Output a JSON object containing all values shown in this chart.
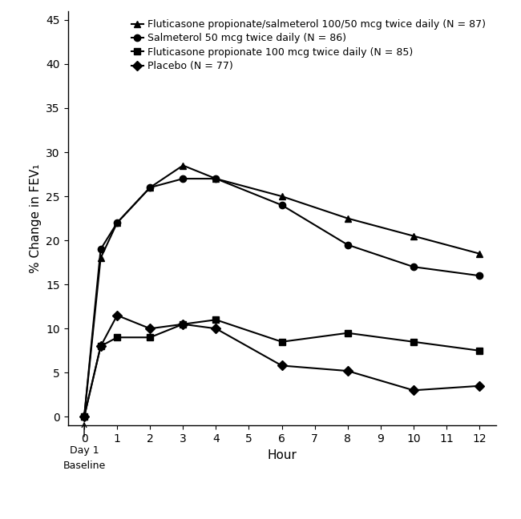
{
  "series": [
    {
      "label": "Fluticasone propionate/salmeterol 100/50 mcg twice daily (N = 87)",
      "marker": "^",
      "x": [
        0,
        0.5,
        1,
        2,
        3,
        4,
        6,
        8,
        10,
        12
      ],
      "y": [
        0,
        18.0,
        22.0,
        26.0,
        28.5,
        27.0,
        25.0,
        22.5,
        20.5,
        18.5
      ]
    },
    {
      "label": "Salmeterol 50 mcg twice daily (N = 86)",
      "marker": "o",
      "x": [
        0,
        0.5,
        1,
        2,
        3,
        4,
        6,
        8,
        10,
        12
      ],
      "y": [
        0,
        19.0,
        22.0,
        26.0,
        27.0,
        27.0,
        24.0,
        19.5,
        17.0,
        16.0
      ]
    },
    {
      "label": "Fluticasone propionate 100 mcg twice daily (N = 85)",
      "marker": "s",
      "x": [
        0,
        0.5,
        1,
        2,
        3,
        4,
        6,
        8,
        10,
        12
      ],
      "y": [
        0,
        8.0,
        9.0,
        9.0,
        10.5,
        11.0,
        8.5,
        9.5,
        8.5,
        7.5
      ]
    },
    {
      "label": "Placebo (N = 77)",
      "marker": "D",
      "x": [
        0,
        0.5,
        1,
        2,
        3,
        4,
        6,
        8,
        10,
        12
      ],
      "y": [
        0,
        8.0,
        11.5,
        10.0,
        10.5,
        10.0,
        5.8,
        5.2,
        3.0,
        3.5
      ]
    }
  ],
  "xlabel": "Hour",
  "ylabel": "% Change in FEV₁",
  "xlim": [
    -0.5,
    12.5
  ],
  "ylim": [
    -1,
    46
  ],
  "yticks": [
    0,
    5,
    10,
    15,
    20,
    25,
    30,
    35,
    40,
    45
  ],
  "xticks": [
    0,
    1,
    2,
    3,
    4,
    5,
    6,
    7,
    8,
    9,
    10,
    11,
    12
  ],
  "color": "#000000",
  "linewidth": 1.5,
  "markersize": 6
}
